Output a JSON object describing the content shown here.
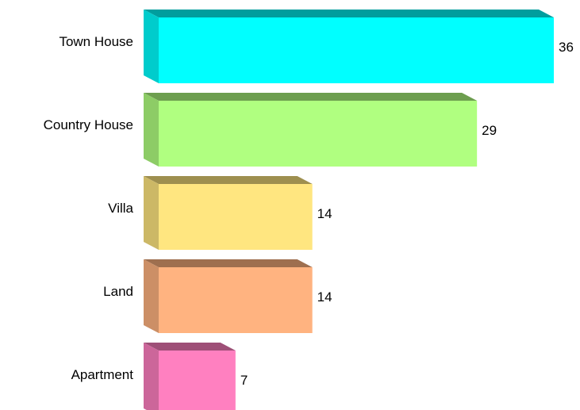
{
  "chart_data": {
    "type": "bar",
    "orientation": "horizontal",
    "categories": [
      "Town House",
      "Country House",
      "Villa",
      "Land",
      "Apartment"
    ],
    "values": [
      36,
      29,
      14,
      14,
      7
    ],
    "colors": [
      "#00ffff",
      "#b0ff80",
      "#ffe680",
      "#ffb380",
      "#ff80c0"
    ],
    "three_d": true
  }
}
